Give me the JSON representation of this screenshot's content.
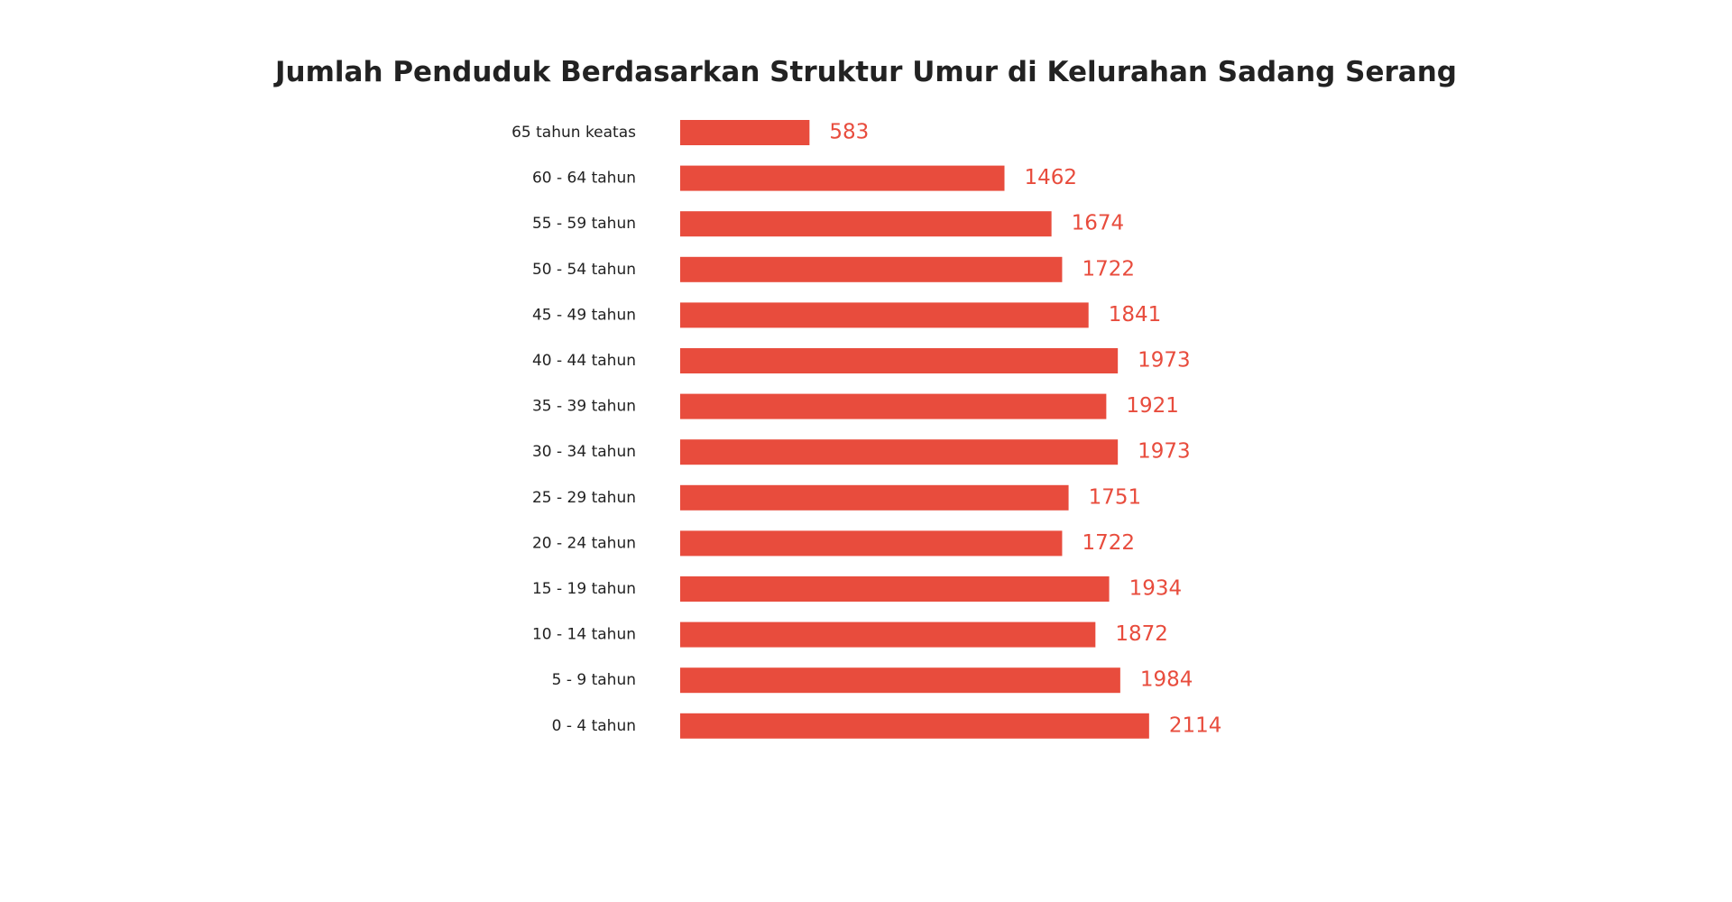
{
  "chart_data": {
    "type": "bar",
    "orientation": "horizontal",
    "title": "Jumlah Penduduk Berdasarkan Struktur Umur di Kelurahan Sadang Serang",
    "xlabel": "",
    "ylabel": "",
    "categories": [
      "65 tahun keatas",
      "60 - 64 tahun",
      "55 - 59 tahun",
      "50 - 54 tahun",
      "45 - 49 tahun",
      "40 - 44 tahun",
      "35 - 39 tahun",
      "30 - 34 tahun",
      "25 - 29 tahun",
      "20 - 24 tahun",
      "15 - 19 tahun",
      "10 - 14 tahun",
      "5 - 9 tahun",
      "0 - 4 tahun"
    ],
    "values": [
      583,
      1462,
      1674,
      1722,
      1841,
      1973,
      1921,
      1973,
      1751,
      1722,
      1934,
      1872,
      1984,
      2114
    ],
    "data_labels": [
      "583",
      "1462",
      "1674",
      "1722",
      "1841",
      "1973",
      "1921",
      "1973",
      "1751",
      "1722",
      "1934",
      "1872",
      "1984",
      "2114"
    ],
    "grid": false,
    "legend": "none",
    "colors": {
      "bar": "#e84c3d",
      "value_label": "#e84c3d",
      "category_label": "#222222",
      "title": "#222222"
    }
  }
}
